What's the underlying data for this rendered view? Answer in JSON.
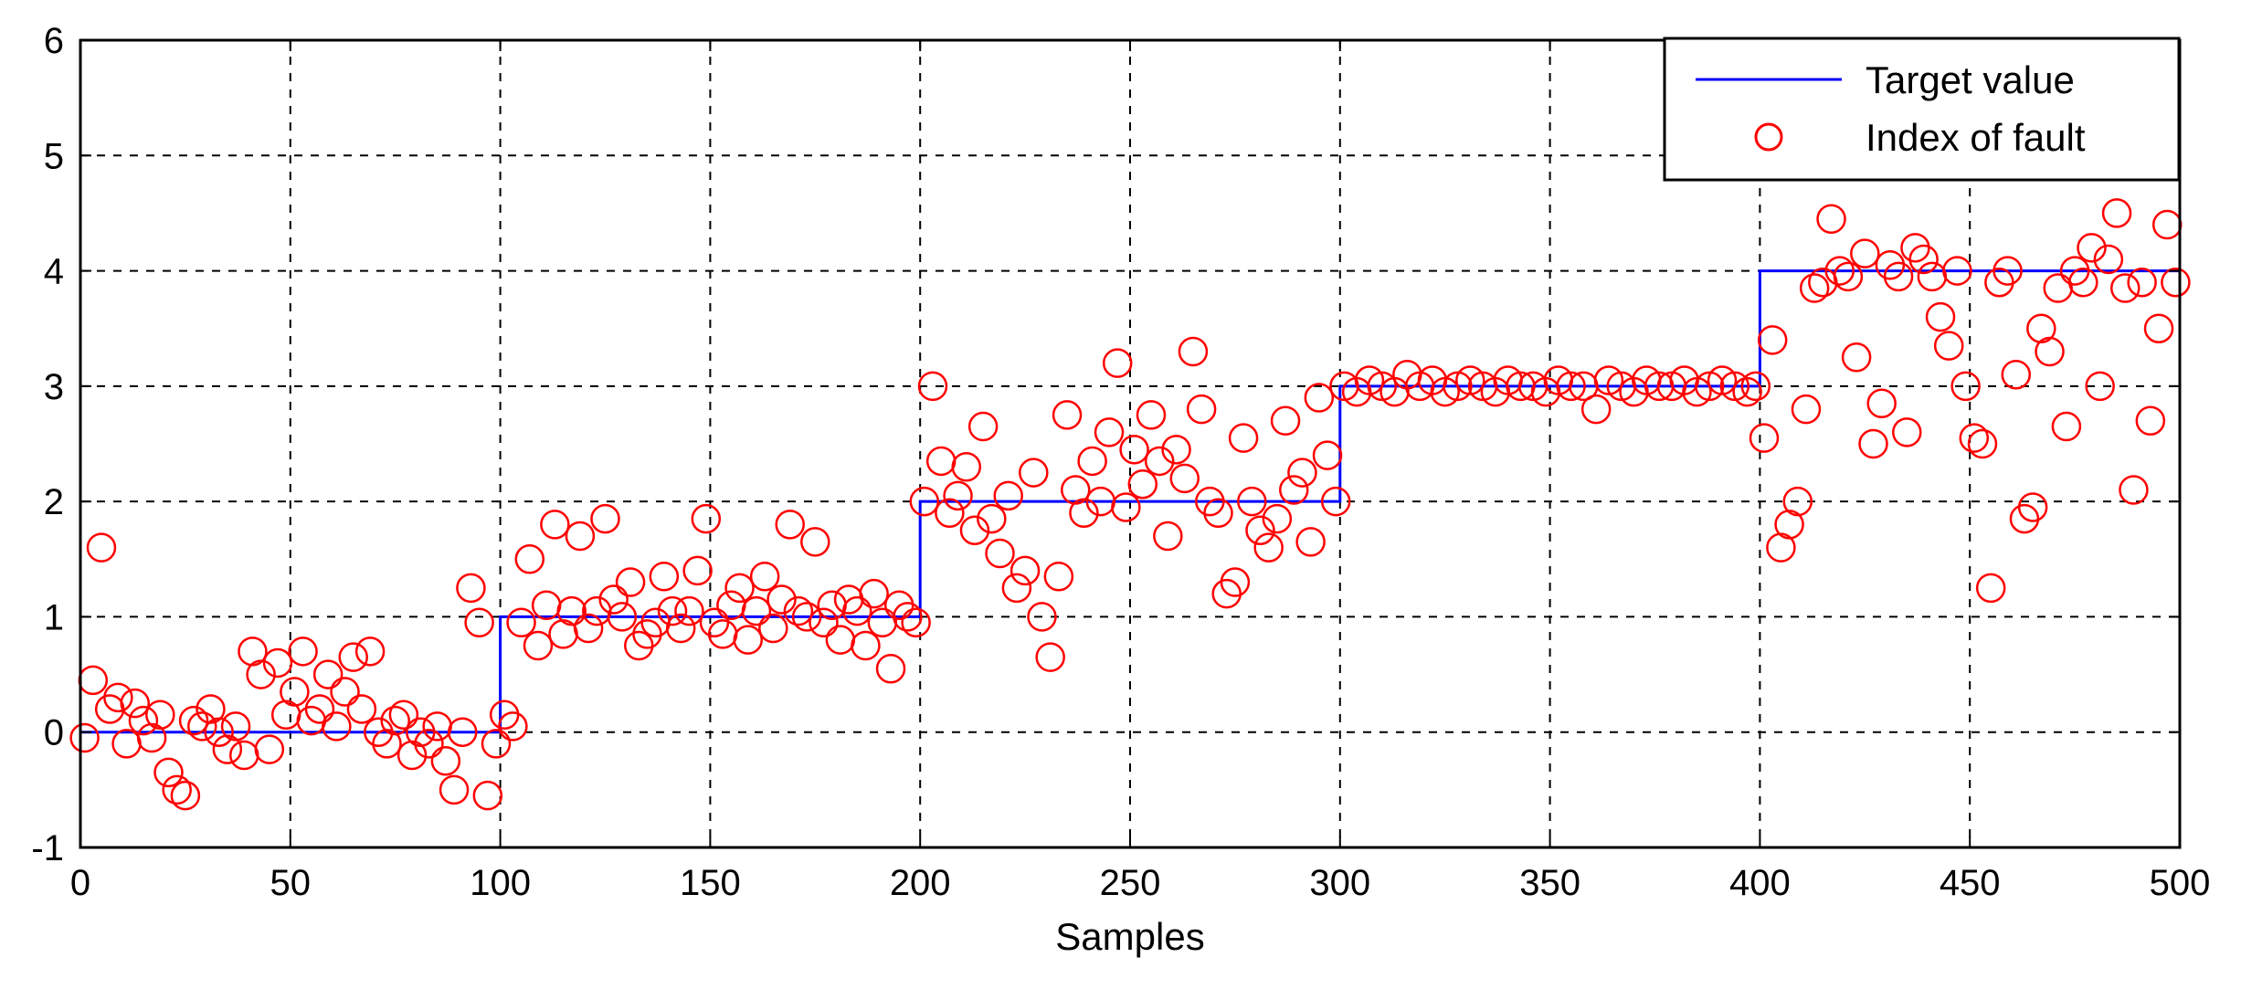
{
  "chart_data": {
    "type": "scatter",
    "title": "",
    "xlabel": "Samples",
    "ylabel": "",
    "xlim": [
      0,
      500
    ],
    "ylim": [
      -1,
      6
    ],
    "xticks": [
      0,
      50,
      100,
      150,
      200,
      250,
      300,
      350,
      400,
      450,
      500
    ],
    "yticks": [
      -1,
      0,
      1,
      2,
      3,
      4,
      5,
      6
    ],
    "grid": true,
    "legend_position": "top-right",
    "series": [
      {
        "name": "Target value",
        "kind": "line",
        "color": "#0000ff",
        "x": [
          0,
          100,
          100,
          200,
          200,
          300,
          300,
          400,
          400,
          500
        ],
        "y": [
          0,
          0,
          1,
          1,
          2,
          2,
          3,
          3,
          4,
          4
        ]
      },
      {
        "name": "Index of fault",
        "kind": "marker",
        "color": "#ff0000",
        "x": [
          1,
          3,
          5,
          7,
          9,
          11,
          13,
          15,
          17,
          19,
          21,
          23,
          25,
          27,
          29,
          31,
          33,
          35,
          37,
          39,
          41,
          43,
          45,
          47,
          49,
          51,
          53,
          55,
          57,
          59,
          61,
          63,
          65,
          67,
          69,
          71,
          73,
          75,
          77,
          79,
          81,
          83,
          85,
          87,
          89,
          91,
          93,
          95,
          97,
          99,
          101,
          103,
          105,
          107,
          109,
          111,
          113,
          115,
          117,
          119,
          121,
          123,
          125,
          127,
          129,
          131,
          133,
          135,
          137,
          139,
          141,
          143,
          145,
          147,
          149,
          151,
          153,
          155,
          157,
          159,
          161,
          163,
          165,
          167,
          169,
          171,
          173,
          175,
          177,
          179,
          181,
          183,
          185,
          187,
          189,
          191,
          193,
          195,
          197,
          199,
          201,
          203,
          205,
          207,
          209,
          211,
          213,
          215,
          217,
          219,
          221,
          223,
          225,
          227,
          229,
          231,
          233,
          235,
          237,
          239,
          241,
          243,
          245,
          247,
          249,
          251,
          253,
          255,
          257,
          259,
          261,
          263,
          265,
          267,
          269,
          271,
          273,
          275,
          277,
          279,
          281,
          283,
          285,
          287,
          289,
          291,
          293,
          295,
          297,
          299,
          301,
          304,
          307,
          310,
          313,
          316,
          319,
          322,
          325,
          328,
          331,
          334,
          337,
          340,
          343,
          346,
          349,
          352,
          355,
          358,
          361,
          364,
          367,
          370,
          373,
          376,
          379,
          382,
          385,
          388,
          391,
          394,
          397,
          399,
          401,
          403,
          405,
          407,
          409,
          411,
          413,
          415,
          417,
          419,
          421,
          423,
          425,
          427,
          429,
          431,
          433,
          435,
          437,
          439,
          441,
          443,
          445,
          447,
          449,
          451,
          453,
          455,
          457,
          459,
          461,
          463,
          465,
          467,
          469,
          471,
          473,
          475,
          477,
          479,
          481,
          483,
          485,
          487,
          489,
          491,
          493,
          495,
          497,
          499
        ],
        "y": [
          -0.05,
          0.45,
          1.6,
          0.2,
          0.3,
          -0.1,
          0.25,
          0.1,
          -0.05,
          0.15,
          -0.35,
          -0.5,
          -0.55,
          0.1,
          0.05,
          0.2,
          0.0,
          -0.15,
          0.05,
          -0.2,
          0.7,
          0.5,
          -0.15,
          0.6,
          0.15,
          0.35,
          0.7,
          0.1,
          0.2,
          0.5,
          0.05,
          0.35,
          0.65,
          0.2,
          0.7,
          0.0,
          -0.1,
          0.1,
          0.15,
          -0.2,
          0.0,
          -0.1,
          0.05,
          -0.25,
          -0.5,
          0.0,
          1.25,
          0.95,
          -0.55,
          -0.1,
          0.15,
          0.05,
          0.95,
          1.5,
          0.75,
          1.1,
          1.8,
          0.85,
          1.05,
          1.7,
          0.9,
          1.05,
          1.85,
          1.15,
          1.0,
          1.3,
          0.75,
          0.85,
          0.95,
          1.35,
          1.05,
          0.9,
          1.05,
          1.4,
          1.85,
          0.95,
          0.85,
          1.1,
          1.25,
          0.8,
          1.05,
          1.35,
          0.9,
          1.15,
          1.8,
          1.05,
          1.0,
          1.65,
          0.95,
          1.1,
          0.8,
          1.15,
          1.05,
          0.75,
          1.2,
          0.95,
          0.55,
          1.1,
          1.0,
          0.95,
          2.0,
          3.0,
          2.35,
          1.9,
          2.05,
          2.3,
          1.75,
          2.65,
          1.85,
          1.55,
          2.05,
          1.25,
          1.4,
          2.25,
          1.0,
          0.65,
          1.35,
          2.75,
          2.1,
          1.9,
          2.35,
          2.0,
          2.6,
          3.2,
          1.95,
          2.45,
          2.15,
          2.75,
          2.35,
          1.7,
          2.45,
          2.2,
          3.3,
          2.8,
          2.0,
          1.9,
          1.2,
          1.3,
          2.55,
          2.0,
          1.75,
          1.6,
          1.85,
          2.7,
          2.1,
          2.25,
          1.65,
          2.9,
          2.4,
          2.0,
          3.0,
          2.95,
          3.05,
          3.0,
          2.95,
          3.1,
          3.0,
          3.05,
          2.95,
          3.0,
          3.05,
          3.0,
          2.95,
          3.05,
          3.0,
          3.0,
          2.95,
          3.05,
          3.0,
          3.0,
          2.8,
          3.05,
          3.0,
          2.95,
          3.05,
          3.0,
          3.0,
          3.05,
          2.95,
          3.0,
          3.05,
          3.0,
          2.95,
          3.0,
          2.55,
          3.4,
          1.6,
          1.8,
          2.0,
          2.8,
          3.85,
          3.9,
          4.45,
          4.0,
          3.95,
          3.25,
          4.15,
          2.5,
          2.85,
          4.05,
          3.95,
          2.6,
          4.2,
          4.1,
          3.95,
          3.6,
          3.35,
          4.0,
          3.0,
          2.55,
          2.5,
          1.25,
          3.9,
          4.0,
          3.1,
          1.85,
          1.95,
          3.5,
          3.3,
          3.85,
          2.65,
          4.0,
          3.9,
          4.2,
          3.0,
          4.1,
          4.5,
          3.85,
          2.1,
          3.9,
          2.7,
          3.5,
          4.4,
          3.9
        ]
      }
    ]
  },
  "legend": {
    "items": [
      {
        "label": "Target value",
        "symbol": "line",
        "color": "#0000ff"
      },
      {
        "label": "Index of fault",
        "symbol": "circle",
        "color": "#ff0000"
      }
    ]
  }
}
